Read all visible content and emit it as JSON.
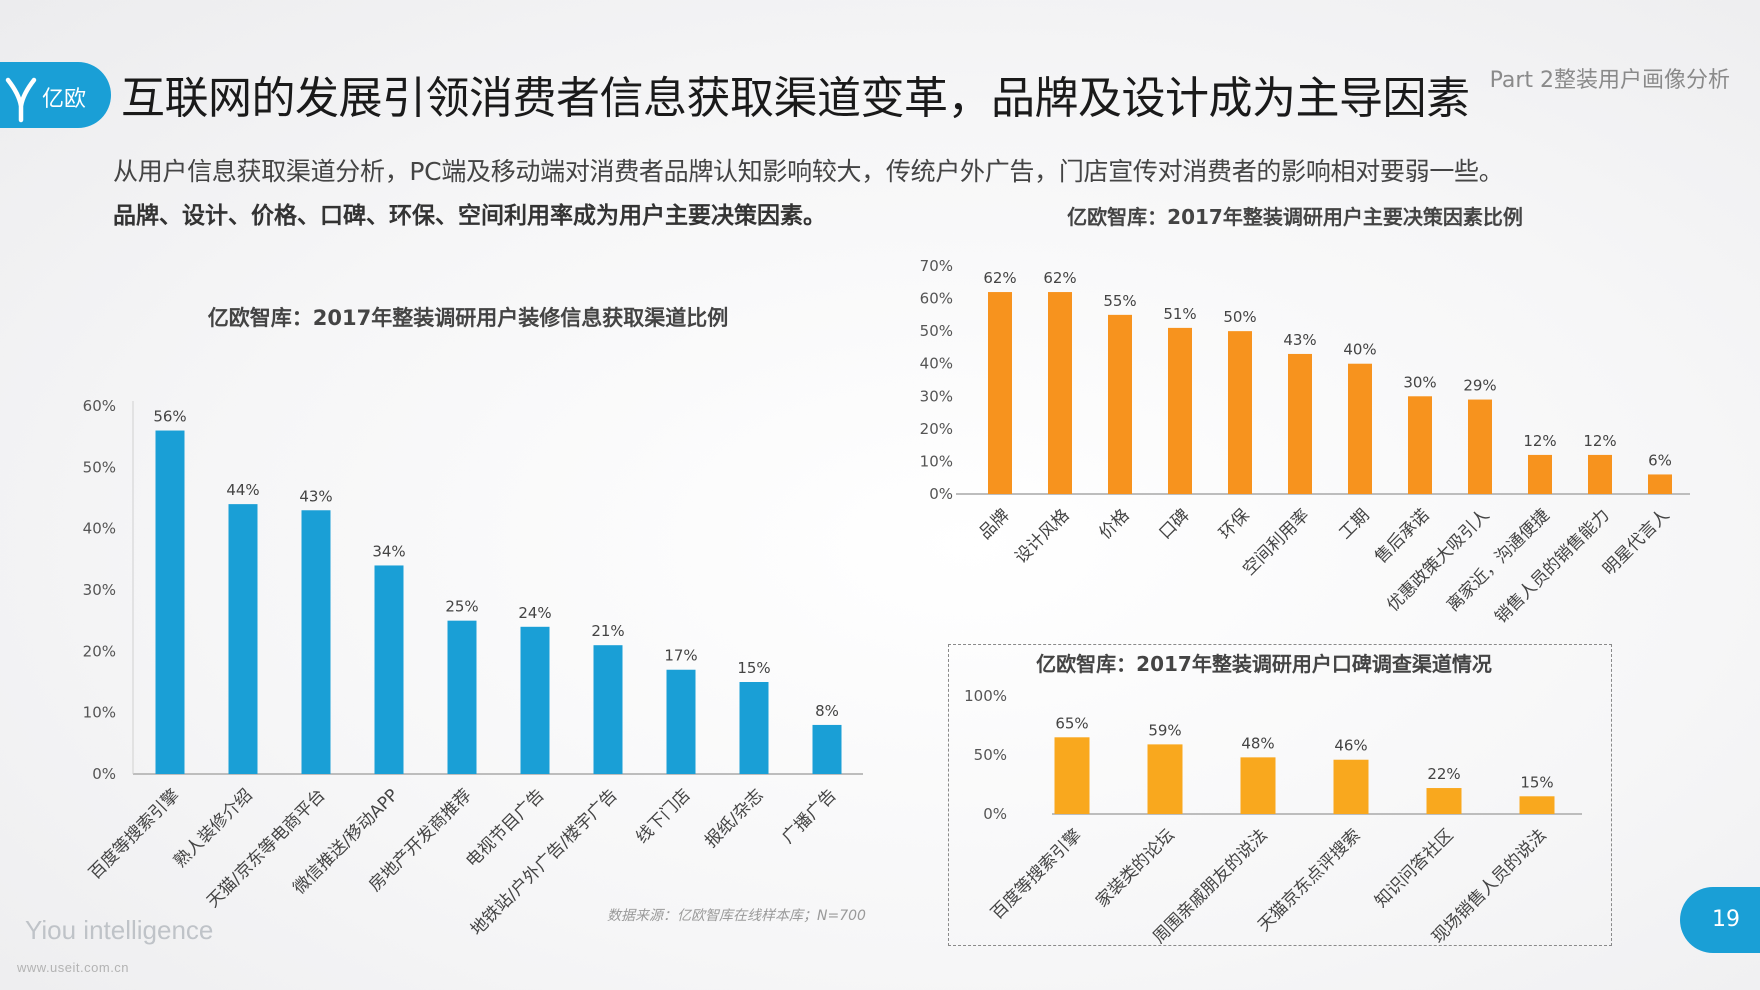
{
  "logo": {
    "text": "亿欧"
  },
  "title": "互联网的发展引领消费者信息获取渠道变革，品牌及设计成为主导因素",
  "part_label": "Part 2整装用户画像分析",
  "subtitle": "从用户信息获取渠道分析，PC端及移动端对消费者品牌认知影响较大，传统户外广告，门店宣传对消费者的影响相对要弱一些。",
  "subtitle_bold": "品牌、设计、价格、口碑、环保、空间利用率成为用户主要决策因素。",
  "source": "数据来源：亿欧智库在线样本库；N=700",
  "brand": "Yiou intelligence",
  "site": "www.useit.com.cn",
  "page_number": "19",
  "colors": {
    "accent_blue": "#1a9fd6",
    "bar_blue": "#1a9fd6",
    "bar_orange": "#f7931e",
    "bar_amber": "#f9a81e"
  },
  "chart_data": [
    {
      "id": "channels",
      "type": "bar",
      "title": "亿欧智库：2017年整装调研用户装修信息获取渠道比例",
      "categories": [
        "百度等搜索引擎",
        "熟人装修介绍",
        "天猫/京东等电商平台",
        "微信推送/移动APP",
        "房地产开发商推荐",
        "电视节目广告",
        "地铁站/户外广告/楼宇广告",
        "线下门店",
        "报纸/杂志",
        "广播广告"
      ],
      "values": [
        56,
        44,
        43,
        34,
        25,
        24,
        21,
        17,
        15,
        8
      ],
      "data_labels": [
        "56%",
        "44%",
        "43%",
        "34%",
        "25%",
        "24%",
        "21%",
        "17%",
        "15%",
        "8%"
      ],
      "yticks": [
        0,
        10,
        20,
        30,
        40,
        50,
        60
      ],
      "ytick_labels": [
        "0%",
        "10%",
        "20%",
        "30%",
        "40%",
        "50%",
        "60%"
      ],
      "ylim": [
        0,
        60
      ],
      "color": "#1a9fd6",
      "grid": false
    },
    {
      "id": "factors",
      "type": "bar",
      "title": "亿欧智库：2017年整装调研用户主要决策因素比例",
      "categories": [
        "品牌",
        "设计风格",
        "价格",
        "口碑",
        "环保",
        "空间利用率",
        "工期",
        "售后承诺",
        "优惠政策大吸引人",
        "离家近，沟通便捷",
        "销售人员的销售能力",
        "明星代言人"
      ],
      "values": [
        62,
        62,
        55,
        51,
        50,
        43,
        40,
        30,
        29,
        12,
        12,
        6
      ],
      "data_labels": [
        "62%",
        "62%",
        "55%",
        "51%",
        "50%",
        "43%",
        "40%",
        "30%",
        "29%",
        "12%",
        "12%",
        "6%"
      ],
      "yticks": [
        0,
        10,
        20,
        30,
        40,
        50,
        60,
        70
      ],
      "ytick_labels": [
        "0%",
        "10%",
        "20%",
        "30%",
        "40%",
        "50%",
        "60%",
        "70%"
      ],
      "ylim": [
        0,
        70
      ],
      "color": "#f7931e",
      "grid": false
    },
    {
      "id": "reputation",
      "type": "bar",
      "title": "亿欧智库：2017年整装调研用户口碑调查渠道情况",
      "categories": [
        "百度等搜索引擎",
        "家装类的论坛",
        "周围亲戚朋友的说法",
        "天猫京东点评搜索",
        "知识问答社区",
        "现场销售人员的说法"
      ],
      "values": [
        65,
        59,
        48,
        46,
        22,
        15
      ],
      "data_labels": [
        "65%",
        "59%",
        "48%",
        "46%",
        "22%",
        "15%"
      ],
      "yticks": [
        0,
        50,
        100
      ],
      "ytick_labels": [
        "0%",
        "50%",
        "100%"
      ],
      "ylim": [
        0,
        100
      ],
      "color": "#f9a81e",
      "grid": false
    }
  ]
}
